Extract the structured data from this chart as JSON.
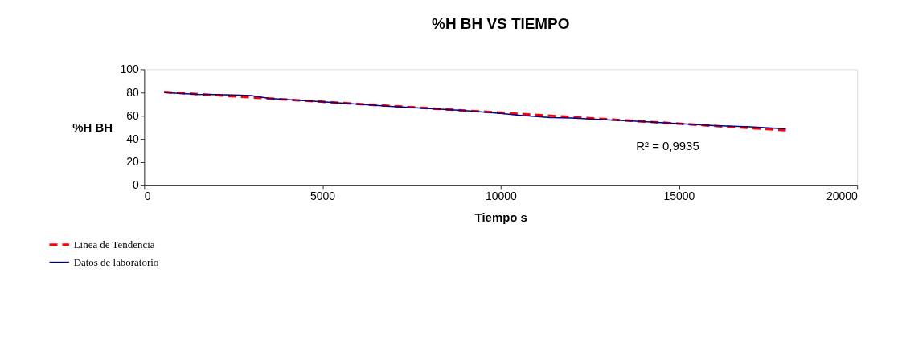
{
  "chart_data": {
    "type": "line",
    "title": "%H BH VS TIEMPO",
    "xlabel": "Tiempo s",
    "ylabel": "%H BH",
    "xlim": [
      0,
      20000
    ],
    "xticks": [
      0,
      5000,
      10000,
      15000,
      20000
    ],
    "ylim": [
      0,
      100
    ],
    "yticks": [
      0,
      20,
      40,
      60,
      80,
      100
    ],
    "grid": false,
    "legend": "bottom left",
    "marker": "none",
    "annotations": [
      "R² = 0,9935"
    ],
    "series": [
      {
        "name": "Linea de Tendencia",
        "color": "#ff0000",
        "line_style": "dashed",
        "x": [
          560,
          18000
        ],
        "values": [
          80.5,
          47.5
        ]
      },
      {
        "name": "Datos de laboratorio",
        "color": "#000080",
        "line_style": "solid",
        "x": [
          560,
          1500,
          2500,
          3000,
          3500,
          5000,
          7000,
          9000,
          10000,
          10500,
          11400,
          12000,
          14000,
          16000,
          17000,
          18000
        ],
        "values": [
          80,
          78.5,
          78,
          77.5,
          75,
          72,
          68,
          64.5,
          62,
          60.5,
          58.4,
          58,
          55,
          51.5,
          50.5,
          48.8
        ]
      }
    ]
  }
}
